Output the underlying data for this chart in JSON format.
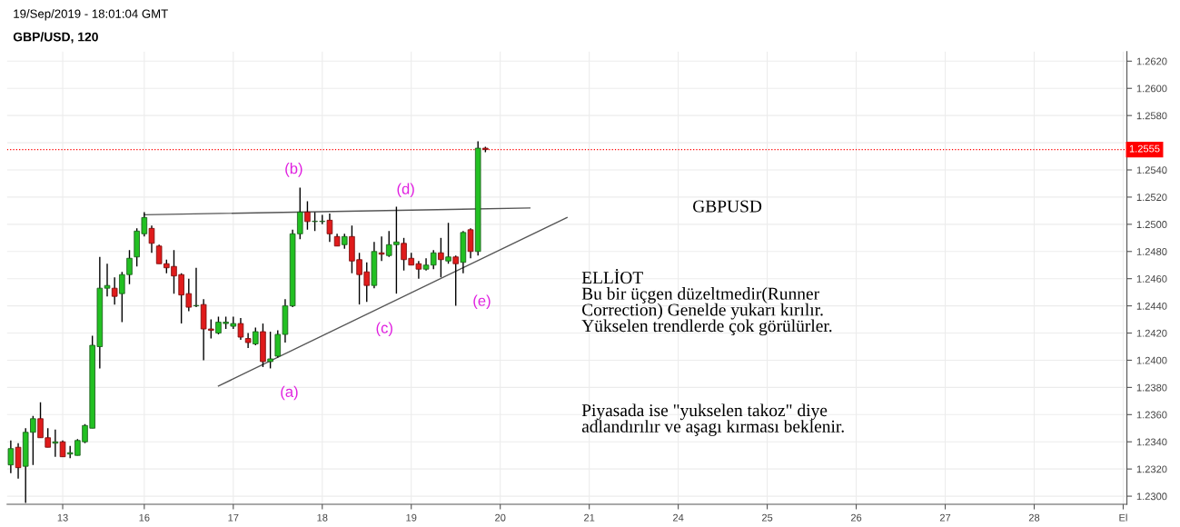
{
  "chart_data": {
    "type": "candlestick",
    "title": "GBP/USD, 120",
    "annotations": [
      "19/Sep/2019 - 18:01:04 GMT",
      "GBPUSD",
      "ELLİOT\nBu bir üçgen düzeltmedir(Runner\nCorrection) Genelde yukarı kırılır.\nYükselen trendlerde çok görülürler.",
      "Piyasada ise \"yukselen takoz\" diye\nadlandırılır ve aşagı kırması beklenir.",
      "(a)",
      "(b)",
      "(c)",
      "(d)",
      "(e)"
    ],
    "categories": [
      null,
      null,
      null,
      null,
      null,
      null,
      null,
      "13",
      null,
      null,
      null,
      null,
      null,
      null,
      null,
      null,
      null,
      null,
      "16",
      null,
      null,
      null,
      null,
      null,
      null,
      null,
      null,
      null,
      null,
      null,
      "17",
      null,
      null,
      null,
      null,
      null,
      null,
      null,
      null,
      null,
      null,
      null,
      "18",
      null,
      null,
      null,
      null,
      null,
      null,
      null,
      null,
      null,
      null,
      null,
      "19",
      null,
      null,
      null,
      null,
      null,
      null,
      null,
      null,
      null,
      null,
      null,
      "20",
      null,
      null,
      null,
      null,
      null,
      null,
      null,
      null,
      null,
      null,
      null,
      "21",
      null,
      null,
      null,
      null,
      null,
      null,
      null,
      null,
      null,
      null,
      null,
      "24",
      null,
      null,
      null,
      null,
      null,
      null,
      null,
      null,
      null,
      null,
      null,
      "25",
      null,
      null,
      null,
      null,
      null,
      null,
      null,
      null,
      null,
      null,
      null,
      "26",
      null,
      null,
      null,
      null,
      null,
      null,
      null,
      null,
      null,
      null,
      null,
      "27",
      null,
      null,
      null,
      null,
      null,
      null,
      null,
      null,
      null,
      null,
      null,
      "28",
      null,
      null,
      null,
      null,
      null,
      null,
      null,
      null,
      null,
      null,
      null,
      "El"
    ],
    "ohlc": [
      [
        1.2323,
        1.2341,
        1.2317,
        1.2335
      ],
      [
        1.2336,
        1.2339,
        1.2313,
        1.2321
      ],
      [
        1.2322,
        1.235,
        1.2295,
        1.2347
      ],
      [
        1.2347,
        1.2359,
        1.2323,
        1.2357
      ],
      [
        1.2357,
        1.2369,
        1.2343,
        1.2343
      ],
      [
        1.2343,
        1.235,
        1.2336,
        1.2336
      ],
      [
        1.2339,
        1.2349,
        1.2329,
        1.234
      ],
      [
        1.234,
        1.2341,
        1.2329,
        1.2329
      ],
      [
        1.2331,
        1.2337,
        1.2328,
        1.2332
      ],
      [
        1.233,
        1.2342,
        1.233,
        1.2341
      ],
      [
        1.234,
        1.2353,
        1.2339,
        1.2352
      ],
      [
        1.235,
        1.2418,
        1.235,
        1.2411
      ],
      [
        1.241,
        1.2476,
        1.2394,
        1.2453
      ],
      [
        1.2453,
        1.2471,
        1.2447,
        1.2455
      ],
      [
        1.2453,
        1.2461,
        1.2441,
        1.2447
      ],
      [
        1.2449,
        1.2465,
        1.2428,
        1.2463
      ],
      [
        1.2463,
        1.2481,
        1.2456,
        1.2475
      ],
      [
        1.2476,
        1.2497,
        1.2469,
        1.2495
      ],
      [
        1.2493,
        1.2509,
        1.2491,
        1.2505
      ],
      [
        1.2497,
        1.2499,
        1.2479,
        1.2486
      ],
      [
        1.2484,
        1.2485,
        1.2471,
        1.2471
      ],
      [
        1.2471,
        1.2474,
        1.2464,
        1.2468
      ],
      [
        1.2469,
        1.2481,
        1.2449,
        1.2462
      ],
      [
        1.2463,
        1.2464,
        1.2427,
        1.2448
      ],
      [
        1.2449,
        1.246,
        1.2436,
        1.2439
      ],
      [
        1.244,
        1.2468,
        1.2439,
        1.244
      ],
      [
        1.2441,
        1.2445,
        1.24,
        1.2423
      ],
      [
        1.2423,
        1.243,
        1.2416,
        1.2422
      ],
      [
        1.242,
        1.2432,
        1.2419,
        1.2428
      ],
      [
        1.2427,
        1.2432,
        1.2423,
        1.2428
      ],
      [
        1.2425,
        1.2432,
        1.2423,
        1.2427
      ],
      [
        1.2427,
        1.2431,
        1.2415,
        1.2417
      ],
      [
        1.2416,
        1.242,
        1.2409,
        1.2413
      ],
      [
        1.2412,
        1.2424,
        1.2411,
        1.2421
      ],
      [
        1.2421,
        1.2427,
        1.2395,
        1.2399
      ],
      [
        1.2399,
        1.2421,
        1.2394,
        1.2401
      ],
      [
        1.2403,
        1.2422,
        1.2402,
        1.2419
      ],
      [
        1.2419,
        1.2445,
        1.2413,
        1.244
      ],
      [
        1.244,
        1.2496,
        1.2439,
        1.2493
      ],
      [
        1.2493,
        1.2527,
        1.2489,
        1.2509
      ],
      [
        1.2509,
        1.2517,
        1.2496,
        1.2502
      ],
      [
        1.2502,
        1.2509,
        1.2495,
        1.2502
      ],
      [
        1.2502,
        1.2507,
        1.25,
        1.2502
      ],
      [
        1.2503,
        1.2508,
        1.2487,
        1.2493
      ],
      [
        1.2491,
        1.2493,
        1.2484,
        1.2484
      ],
      [
        1.2485,
        1.2493,
        1.2482,
        1.2491
      ],
      [
        1.2491,
        1.2499,
        1.2464,
        1.2473
      ],
      [
        1.2474,
        1.2479,
        1.2441,
        1.2463
      ],
      [
        1.2465,
        1.2472,
        1.2443,
        1.2455
      ],
      [
        1.2455,
        1.2487,
        1.2453,
        1.248
      ],
      [
        1.2479,
        1.2491,
        1.2473,
        1.2478
      ],
      [
        1.2477,
        1.2495,
        1.2476,
        1.2485
      ],
      [
        1.2485,
        1.2513,
        1.2449,
        1.2487
      ],
      [
        1.2486,
        1.249,
        1.2466,
        1.2474
      ],
      [
        1.2475,
        1.2479,
        1.247,
        1.247
      ],
      [
        1.2471,
        1.2473,
        1.246,
        1.2467
      ],
      [
        1.2467,
        1.2475,
        1.2466,
        1.247
      ],
      [
        1.247,
        1.2481,
        1.2467,
        1.2479
      ],
      [
        1.2479,
        1.249,
        1.2461,
        1.2474
      ],
      [
        1.2473,
        1.2501,
        1.2471,
        1.2476
      ],
      [
        1.2476,
        1.2477,
        1.244,
        1.2471
      ],
      [
        1.2472,
        1.2495,
        1.2464,
        1.2494
      ],
      [
        1.2496,
        1.2497,
        1.2475,
        1.248
      ],
      [
        1.248,
        1.2561,
        1.2477,
        1.2556
      ],
      [
        1.2556,
        1.2557,
        1.2553,
        1.2555
      ],
      null,
      null,
      null,
      null,
      null,
      null,
      null,
      null,
      null,
      null,
      null,
      null,
      null,
      null,
      null,
      null,
      null,
      null,
      null,
      null,
      null,
      null,
      null,
      null,
      null,
      null,
      null,
      null,
      null,
      null,
      null,
      null,
      null,
      null,
      null,
      null,
      null,
      null,
      null,
      null,
      null,
      null,
      null,
      null,
      null,
      null,
      null,
      null,
      null,
      null,
      null,
      null,
      null,
      null,
      null,
      null,
      null,
      null,
      null,
      null,
      null,
      null,
      null,
      null,
      null,
      null,
      null,
      null,
      null,
      null,
      null,
      null,
      null,
      null,
      null,
      null,
      null,
      null,
      null,
      null,
      null,
      null,
      null,
      null,
      null,
      null
    ],
    "series": [
      {
        "type": "line",
        "values": [
          null,
          null,
          null,
          null,
          null,
          null,
          null,
          null,
          null,
          null,
          null,
          null,
          null,
          null,
          null,
          null,
          null,
          null,
          1.2507,
          null,
          null,
          null,
          null,
          null,
          null,
          null,
          null,
          null,
          null,
          null,
          null,
          null,
          null,
          null,
          null,
          null,
          null,
          null,
          null,
          null,
          null,
          null,
          null,
          null,
          null,
          null,
          null,
          null,
          null,
          null,
          null,
          null,
          null,
          null,
          null,
          null,
          null,
          null,
          null,
          null,
          null,
          null,
          null,
          null,
          null,
          null,
          null,
          null,
          null,
          null,
          1.2512,
          null,
          null,
          null,
          null,
          null,
          null,
          null,
          null,
          null,
          null,
          null,
          null,
          null,
          null,
          null,
          null,
          null,
          null,
          null,
          null,
          null,
          null,
          null,
          null,
          null,
          null,
          null,
          null,
          null,
          null,
          null,
          null,
          null,
          null,
          null,
          null,
          null,
          null,
          null,
          null,
          null,
          null,
          null,
          null,
          null,
          null,
          null,
          null,
          null,
          null,
          null,
          null,
          null,
          null,
          null,
          null,
          null,
          null,
          null,
          null,
          null,
          null,
          null,
          null,
          null,
          null,
          null,
          null,
          null,
          null,
          null,
          null,
          null,
          null,
          null,
          null,
          null,
          null,
          null,
          null
        ],
        "color": "#555555"
      },
      {
        "type": "line",
        "values": [
          null,
          null,
          null,
          null,
          null,
          null,
          null,
          null,
          null,
          null,
          null,
          null,
          null,
          null,
          null,
          null,
          null,
          null,
          null,
          null,
          null,
          null,
          null,
          null,
          null,
          null,
          null,
          null,
          1.2381,
          null,
          null,
          null,
          null,
          null,
          null,
          null,
          null,
          null,
          null,
          null,
          null,
          null,
          null,
          null,
          null,
          null,
          null,
          null,
          null,
          null,
          null,
          null,
          null,
          null,
          null,
          null,
          null,
          null,
          null,
          null,
          null,
          null,
          null,
          null,
          null,
          null,
          null,
          null,
          null,
          null,
          null,
          null,
          null,
          null,
          null,
          1.2505,
          null,
          null,
          null,
          null,
          null,
          null,
          null,
          null,
          null,
          null,
          null,
          null,
          null,
          null,
          null,
          null,
          null,
          null,
          null,
          null,
          null,
          null,
          null,
          null,
          null,
          null,
          null,
          null,
          null,
          null,
          null,
          null,
          null,
          null,
          null,
          null,
          null,
          null,
          null,
          null,
          null,
          null,
          null,
          null,
          null,
          null,
          null,
          null,
          null,
          null,
          null,
          null,
          null,
          null,
          null,
          null,
          null,
          null,
          null,
          null,
          null,
          null,
          null,
          null,
          null,
          null,
          null,
          null,
          null,
          null,
          null,
          null,
          null,
          null,
          null
        ],
        "color": "#555555"
      }
    ],
    "ref_lines": [
      {
        "axis": "y",
        "value": 1.2555,
        "label": "1.2555",
        "color": "#ff0000",
        "line_style": "dotted"
      }
    ],
    "ylim": [
      1.2294,
      1.2627
    ],
    "yticks": [
      {
        "value": 1.23,
        "label": "1.2300"
      },
      {
        "value": 1.232,
        "label": "1.2320"
      },
      {
        "value": 1.234,
        "label": "1.2340"
      },
      {
        "value": 1.236,
        "label": "1.2360"
      },
      {
        "value": 1.238,
        "label": "1.2380"
      },
      {
        "value": 1.24,
        "label": "1.2400"
      },
      {
        "value": 1.242,
        "label": "1.2420"
      },
      {
        "value": 1.244,
        "label": "1.2440"
      },
      {
        "value": 1.246,
        "label": "1.2460"
      },
      {
        "value": 1.248,
        "label": "1.2480"
      },
      {
        "value": 1.25,
        "label": "1.2500"
      },
      {
        "value": 1.252,
        "label": "1.2520"
      },
      {
        "value": 1.254,
        "label": "1.2540"
      },
      {
        "value": 1.256,
        "label": null
      },
      {
        "value": 1.258,
        "label": "1.2580"
      },
      {
        "value": 1.26,
        "label": "1.2600"
      },
      {
        "value": 1.262,
        "label": "1.2620"
      }
    ],
    "grid": true
  }
}
